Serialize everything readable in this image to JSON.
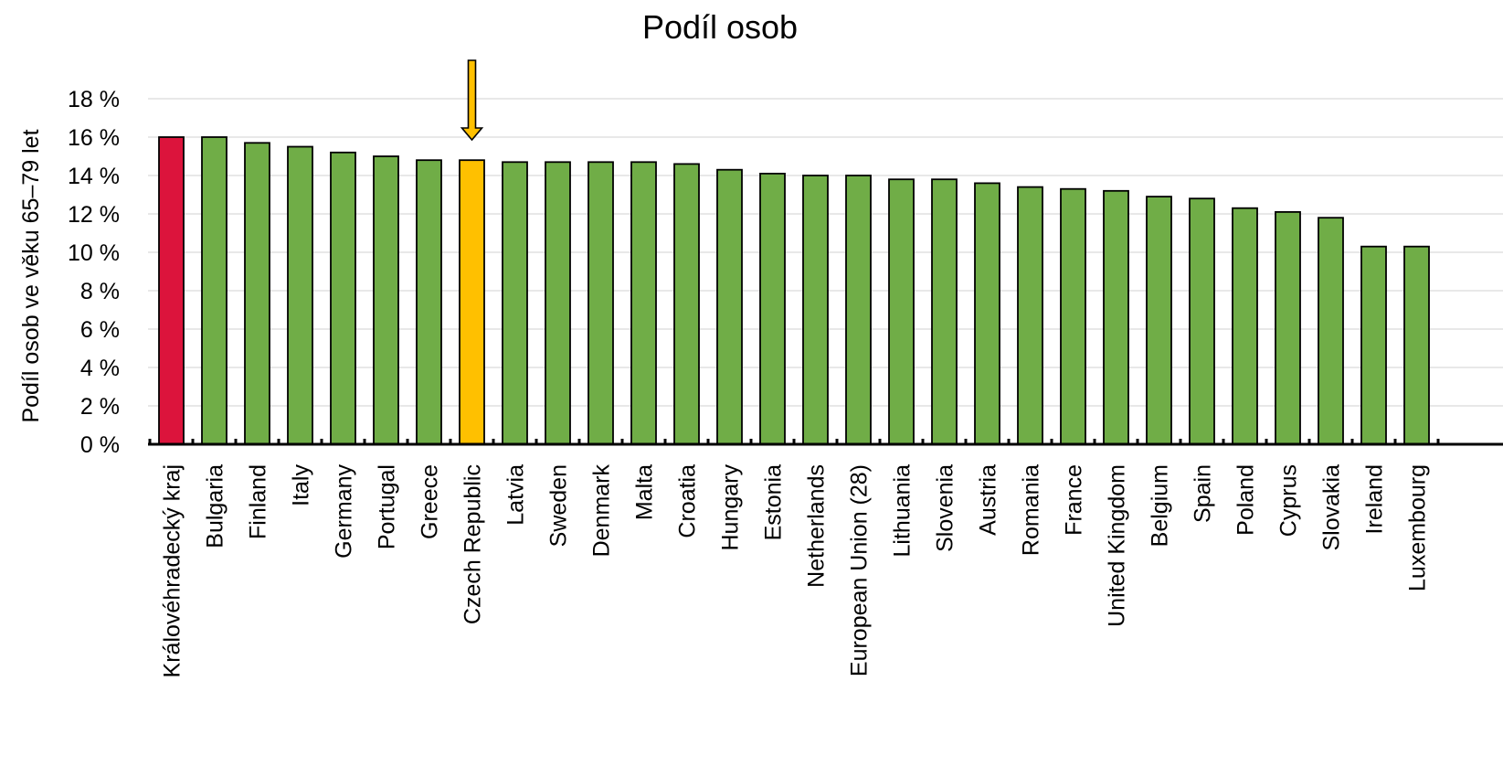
{
  "chart_data": {
    "type": "bar",
    "title": "Podíl osob",
    "ylabel": "Podíl osob ve věku 65–79 let",
    "xlabel": "",
    "ylim": [
      0,
      18
    ],
    "yticks": [
      0,
      2,
      4,
      6,
      8,
      10,
      12,
      14,
      16,
      18
    ],
    "ytick_labels": [
      "0 %",
      "2 %",
      "4 %",
      "6 %",
      "8 %",
      "10 %",
      "12 %",
      "14 %",
      "16 %",
      "18 %"
    ],
    "grid": true,
    "legend": "none",
    "categories": [
      "Královéhradecký kraj",
      "Bulgaria",
      "Finland",
      "Italy",
      "Germany",
      "Portugal",
      "Greece",
      "Czech Republic",
      "Latvia",
      "Sweden",
      "Denmark",
      "Malta",
      "Croatia",
      "Hungary",
      "Estonia",
      "Netherlands",
      "European Union (28)",
      "Lithuania",
      "Slovenia",
      "Austria",
      "Romania",
      "France",
      "United Kingdom",
      "Belgium",
      "Spain",
      "Poland",
      "Cyprus",
      "Slovakia",
      "Ireland",
      "Luxembourg"
    ],
    "values": [
      16.0,
      16.0,
      15.7,
      15.5,
      15.2,
      15.0,
      14.8,
      14.8,
      14.7,
      14.7,
      14.7,
      14.7,
      14.6,
      14.3,
      14.1,
      14.0,
      14.0,
      13.8,
      13.8,
      13.6,
      13.4,
      13.3,
      13.2,
      12.9,
      12.8,
      12.3,
      12.1,
      11.8,
      10.3,
      10.3
    ],
    "colors": {
      "default": "#70ad47",
      "highlight_region": "#dc143c",
      "highlight_country": "#ffc000",
      "arrow": "#ffc000"
    },
    "highlight": {
      "region_index": 0,
      "country_index": 7
    },
    "annotation": {
      "type": "arrow",
      "points_to": "Czech Republic"
    }
  }
}
